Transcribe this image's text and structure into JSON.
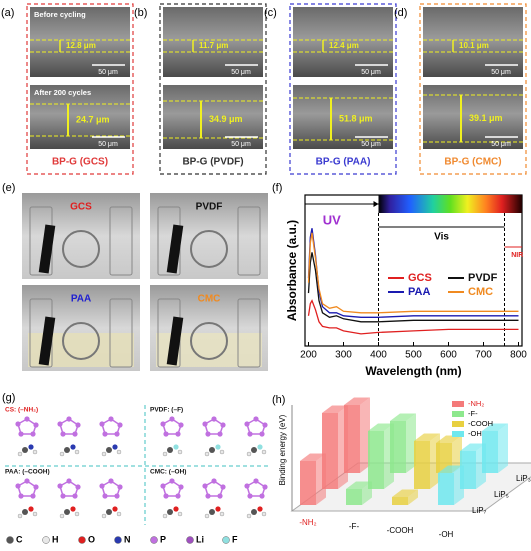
{
  "sem_panels": [
    {
      "label": "(a)",
      "before": "Before cycling",
      "before_thickness": "12.8 μm",
      "after": "After 200 cycles",
      "after_thickness": "24.7 μm",
      "scale_bars": [
        "50 μm",
        "50 μm"
      ],
      "name": "BP-G (GCS)",
      "color": "#e03a3a"
    },
    {
      "label": "(b)",
      "before_thickness": "11.7 μm",
      "after_thickness": "34.9 μm",
      "scale_bars": [
        "50 μm",
        "50 μm"
      ],
      "name": "BP-G (PVDF)",
      "color": "#333333"
    },
    {
      "label": "(c)",
      "before_thickness": "12.4 μm",
      "after_thickness": "51.8 μm",
      "scale_bars": [
        "50 μm",
        "50 μm"
      ],
      "name": "BP-G (PAA)",
      "color": "#3a3ad0"
    },
    {
      "label": "(d)",
      "before_thickness": "10.1 μm",
      "after_thickness": "39.1 μm",
      "scale_bars": [
        "50 μm",
        "50 μm"
      ],
      "name": "BP-G (CMC)",
      "color": "#f08a30"
    }
  ],
  "photo_panel": {
    "label": "(e)",
    "photos": [
      {
        "name": "GCS",
        "color": "#e02020"
      },
      {
        "name": "PVDF",
        "color": "#111111"
      },
      {
        "name": "PAA",
        "color": "#2020d0"
      },
      {
        "name": "CMC",
        "color": "#f08a20"
      }
    ]
  },
  "chart_data": [
    {
      "type": "line",
      "label": "(f)",
      "xlabel": "Wavelength (nm)",
      "ylabel": "Absorbance (a.u.)",
      "xlim": [
        190,
        810
      ],
      "xticks": [
        200,
        300,
        400,
        500,
        600,
        700,
        800
      ],
      "ylim": [
        0,
        1
      ],
      "annotations": [
        "UV",
        "Vis",
        "NIR"
      ],
      "region_bounds": [
        400,
        760
      ],
      "legend": "center",
      "x": [
        200,
        205,
        210,
        220,
        230,
        240,
        260,
        280,
        300,
        350,
        400,
        500,
        600,
        700,
        800
      ],
      "series": [
        {
          "name": "GCS",
          "color": "#e02020",
          "values": [
            0.2,
            0.28,
            0.3,
            0.24,
            0.16,
            0.13,
            0.12,
            0.12,
            0.1,
            0.08,
            0.09,
            0.1,
            0.11,
            0.11,
            0.11
          ]
        },
        {
          "name": "PVDF",
          "color": "#111111",
          "values": [
            0.35,
            0.55,
            0.62,
            0.5,
            0.3,
            0.22,
            0.19,
            0.2,
            0.18,
            0.16,
            0.16,
            0.17,
            0.17,
            0.17,
            0.17
          ]
        },
        {
          "name": "PAA",
          "color": "#1a1ab0",
          "values": [
            0.45,
            0.72,
            0.78,
            0.6,
            0.36,
            0.26,
            0.22,
            0.22,
            0.2,
            0.19,
            0.19,
            0.2,
            0.2,
            0.2,
            0.2
          ]
        },
        {
          "name": "CMC",
          "color": "#f08a20",
          "values": [
            0.42,
            0.68,
            0.75,
            0.58,
            0.38,
            0.28,
            0.25,
            0.26,
            0.23,
            0.22,
            0.22,
            0.23,
            0.23,
            0.23,
            0.23
          ]
        }
      ]
    },
    {
      "type": "bar3d",
      "label": "(h)",
      "ylabel": "Binding energy (eV)",
      "ylim": [
        0,
        4
      ],
      "legend": "upper right",
      "categories": [
        "LiP₃",
        "LiP₅",
        "LiP₇"
      ],
      "series": [
        {
          "name": "-NH₂",
          "color": "#f47a7a",
          "values": [
            3.4,
            3.8,
            2.2
          ]
        },
        {
          "name": "-F-",
          "color": "#8de88d",
          "values": [
            2.6,
            2.9,
            0.8
          ]
        },
        {
          "name": "-COOH",
          "color": "#e8d040",
          "values": [
            1.5,
            2.4,
            0.4
          ]
        },
        {
          "name": "-OH",
          "color": "#6ee8ee",
          "values": [
            2.1,
            1.9,
            1.6
          ]
        }
      ]
    }
  ],
  "molecule_panel": {
    "label": "(g)",
    "quadrants": [
      {
        "title": "CS: (–NH₂)",
        "color": "#e02020"
      },
      {
        "title": "PVDF: (–F)",
        "color": "#111111"
      },
      {
        "title": "PAA: (–COOH)",
        "color": "#111111"
      },
      {
        "title": "CMC: (–OH)",
        "color": "#111111"
      }
    ],
    "atoms": [
      {
        "name": "C",
        "color": "#555555"
      },
      {
        "name": "H",
        "color": "#e8e8e8"
      },
      {
        "name": "O",
        "color": "#e02020"
      },
      {
        "name": "N",
        "color": "#2a3ab0"
      },
      {
        "name": "P",
        "color": "#c070e0"
      },
      {
        "name": "Li",
        "color": "#a050c0"
      },
      {
        "name": "F",
        "color": "#90e0e0"
      }
    ]
  }
}
